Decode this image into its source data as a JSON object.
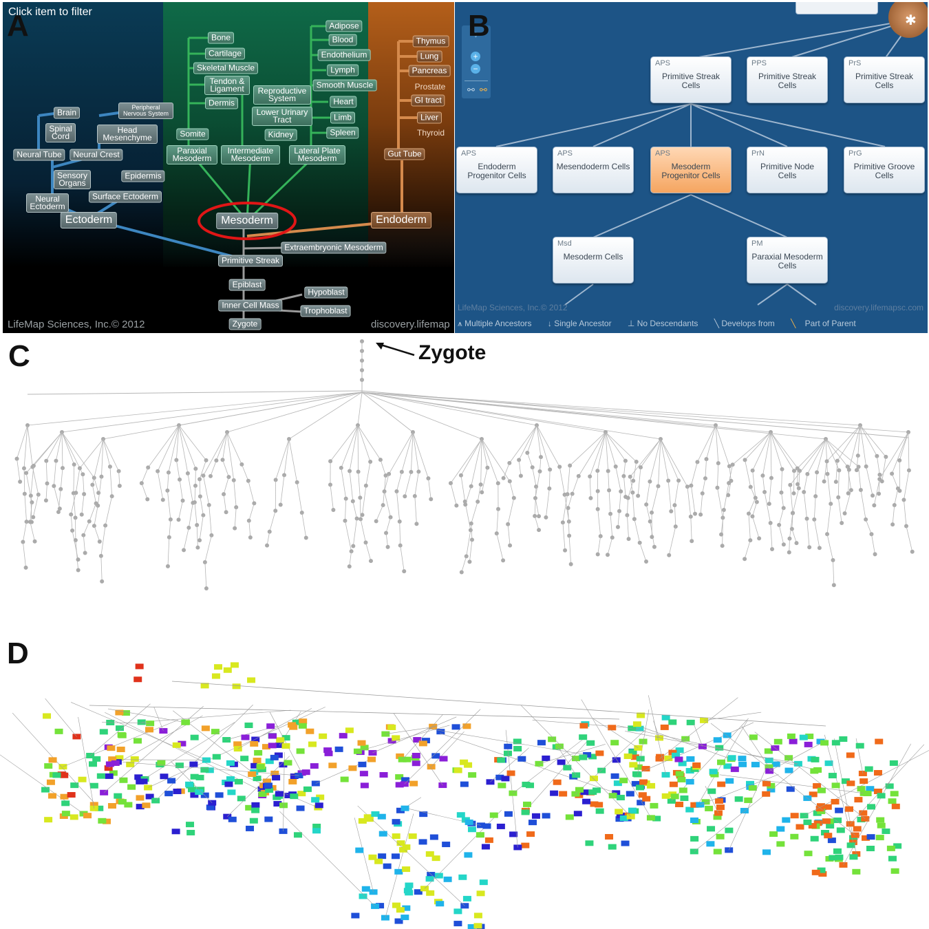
{
  "labels": {
    "a": "A",
    "b": "B",
    "c": "C",
    "d": "D"
  },
  "panelA": {
    "hint": "Click item to filter",
    "copyright": "LifeMap Sciences, Inc.© 2012",
    "site": "discovery.lifemap",
    "ectoderm": [
      "Brain",
      "Spinal Cord",
      "Peripheral Nervous System",
      "Head Mesenchyme",
      "Neural Tube",
      "Neural Crest",
      "Sensory Organs",
      "Epidermis",
      "Neural Ectoderm",
      "Surface Ectoderm",
      "Ectoderm"
    ],
    "mesoderm": [
      "Bone",
      "Cartilage",
      "Skeletal Muscle",
      "Tendon & Ligament",
      "Dermis",
      "Reproductive System",
      "Lower Urinary Tract",
      "Kidney",
      "Somite",
      "Paraxial Mesoderm",
      "Intermediate Mesoderm",
      "Lateral Plate Mesoderm",
      "Adipose",
      "Blood",
      "Endothelium",
      "Lymph",
      "Smooth Muscle",
      "Heart",
      "Limb",
      "Spleen",
      "Mesoderm"
    ],
    "endoderm": [
      "Thymus",
      "Lung",
      "Pancreas",
      "Prostate",
      "GI tract",
      "Liver",
      "Thyroid",
      "Gut Tube",
      "Endoderm"
    ],
    "early": [
      "Extraembryonic Mesoderm",
      "Primitive Streak",
      "Epiblast",
      "Hypoblast",
      "Inner Cell Mass",
      "Trophoblast",
      "Zygote"
    ]
  },
  "panelB": {
    "cards": [
      {
        "abbr": "APS",
        "name": "Primitive Streak Cells"
      },
      {
        "abbr": "PPS",
        "name": "Primitive Streak Cells"
      },
      {
        "abbr": "PrS",
        "name": "Primitive Streak Cells"
      },
      {
        "abbr": "APS",
        "name": "Endoderm Progenitor Cells"
      },
      {
        "abbr": "APS",
        "name": "Mesendoderm Cells"
      },
      {
        "abbr": "APS",
        "name": "Mesoderm Progenitor Cells",
        "selected": true
      },
      {
        "abbr": "PrN",
        "name": "Primitive Node Cells"
      },
      {
        "abbr": "PrG",
        "name": "Primitive Groove Cells"
      },
      {
        "abbr": "Msd",
        "name": "Mesoderm Cells"
      },
      {
        "abbr": "PM",
        "name": "Paraxial Mesoderm Cells"
      }
    ],
    "copyright": "LifeMap Sciences, Inc.© 2012",
    "site": "discovery.lifemapsc.com",
    "legend": [
      "Multiple Ancestors",
      "Single Ancestor",
      "No Descendants",
      "Develops from",
      "Part of Parent"
    ]
  },
  "panelC": {
    "arrow_label": "Zygote"
  },
  "colors": {
    "accent_ring": "#e01616",
    "selected_card": "#f5a560",
    "tree_gray": "#b5b5b5"
  }
}
